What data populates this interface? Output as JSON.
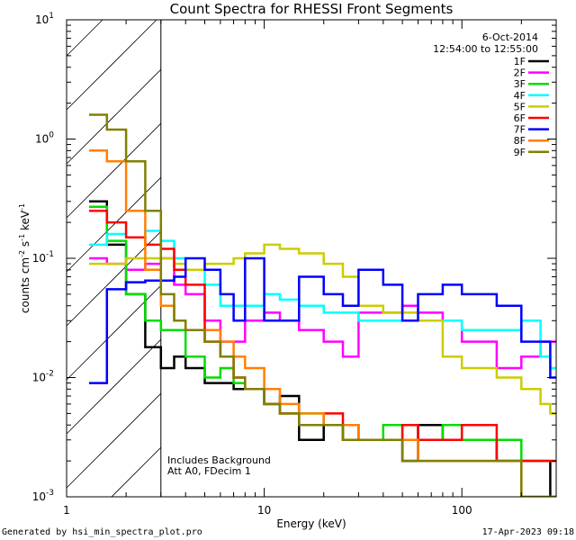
{
  "chart_data": {
    "type": "line",
    "title": "Count Spectra for RHESSI Front Segments",
    "xlabel": "Energy (keV)",
    "ylabel": "counts cm^-2 s^-1 keV^-1",
    "xscale": "log",
    "yscale": "log",
    "xlim": [
      1,
      300
    ],
    "ylim": [
      0.001,
      10
    ],
    "x_ticks": [
      {
        "value": 1,
        "label": "1"
      },
      {
        "value": 10,
        "label": "10"
      },
      {
        "value": 100,
        "label": "100"
      }
    ],
    "y_ticks": [
      {
        "value": 10,
        "base": "10",
        "exp": "1"
      },
      {
        "value": 1,
        "base": "10",
        "exp": "0"
      },
      {
        "value": 0.1,
        "base": "10",
        "exp": "-1"
      },
      {
        "value": 0.01,
        "base": "10",
        "exp": "-2"
      },
      {
        "value": 0.001,
        "base": "10",
        "exp": "-3"
      }
    ],
    "shaded_region": {
      "x": [
        1,
        3
      ],
      "pattern": "hatched"
    },
    "date": "6-Oct-2014",
    "time_range": "12:54:00 to 12:55:00",
    "legend_position": "top-right",
    "annotations": [
      "Includes Background",
      "Att A0, FDecim 1"
    ],
    "series": [
      {
        "name": "1F",
        "color": "#000000",
        "x": [
          1.3,
          1.6,
          2,
          2.5,
          3,
          3.5,
          4,
          5,
          6,
          7,
          8,
          10,
          12,
          15,
          20,
          25,
          30,
          40,
          50,
          60,
          80,
          100,
          150,
          200,
          250,
          280
        ],
        "y": [
          0.3,
          0.13,
          0.05,
          0.018,
          0.012,
          0.015,
          0.012,
          0.009,
          0.009,
          0.008,
          0.008,
          0.006,
          0.007,
          0.003,
          0.004,
          0.003,
          0.003,
          0.003,
          0.002,
          0.004,
          0.003,
          0.003,
          0.002,
          0.002,
          0.002,
          0.001
        ]
      },
      {
        "name": "2F",
        "color": "#ff00ff",
        "x": [
          1.3,
          1.6,
          2,
          2.5,
          3,
          3.5,
          4,
          5,
          6,
          7,
          8,
          10,
          12,
          15,
          20,
          25,
          30,
          40,
          50,
          60,
          80,
          100,
          150,
          200,
          250,
          280
        ],
        "y": [
          0.1,
          0.09,
          0.08,
          0.09,
          0.1,
          0.06,
          0.05,
          0.03,
          0.02,
          0.02,
          0.03,
          0.035,
          0.03,
          0.025,
          0.02,
          0.015,
          0.035,
          0.035,
          0.04,
          0.035,
          0.03,
          0.02,
          0.012,
          0.015,
          0.02,
          0.02
        ]
      },
      {
        "name": "3F",
        "color": "#00dd00",
        "x": [
          1.3,
          1.6,
          2,
          2.5,
          3,
          3.5,
          4,
          5,
          6,
          7,
          8,
          10,
          12,
          15,
          20,
          25,
          30,
          40,
          50,
          60,
          80,
          100,
          150,
          200,
          250,
          280
        ],
        "y": [
          0.27,
          0.14,
          0.05,
          0.03,
          0.025,
          0.025,
          0.015,
          0.01,
          0.012,
          0.009,
          0.008,
          0.006,
          0.005,
          0.005,
          0.004,
          0.004,
          0.003,
          0.004,
          0.003,
          0.003,
          0.004,
          0.003,
          0.003,
          0.002,
          0.002,
          0.002
        ]
      },
      {
        "name": "4F",
        "color": "#00ffff",
        "x": [
          1.3,
          1.6,
          2,
          2.5,
          3,
          3.5,
          4,
          5,
          6,
          7,
          8,
          10,
          12,
          15,
          20,
          25,
          30,
          40,
          50,
          60,
          80,
          100,
          150,
          200,
          250,
          280
        ],
        "y": [
          0.13,
          0.16,
          0.15,
          0.17,
          0.14,
          0.1,
          0.08,
          0.06,
          0.04,
          0.04,
          0.04,
          0.05,
          0.045,
          0.04,
          0.035,
          0.035,
          0.03,
          0.03,
          0.03,
          0.03,
          0.03,
          0.025,
          0.025,
          0.03,
          0.015,
          0.012
        ]
      },
      {
        "name": "5F",
        "color": "#cccc00",
        "x": [
          1.3,
          1.6,
          2,
          2.5,
          3,
          3.5,
          4,
          5,
          6,
          7,
          8,
          10,
          12,
          15,
          20,
          25,
          30,
          40,
          50,
          60,
          80,
          100,
          150,
          200,
          250,
          280
        ],
        "y": [
          0.09,
          0.09,
          0.1,
          0.1,
          0.1,
          0.09,
          0.08,
          0.09,
          0.09,
          0.1,
          0.11,
          0.13,
          0.12,
          0.11,
          0.09,
          0.07,
          0.04,
          0.035,
          0.035,
          0.03,
          0.015,
          0.012,
          0.01,
          0.008,
          0.006,
          0.005
        ]
      },
      {
        "name": "6F",
        "color": "#ff0000",
        "x": [
          1.3,
          1.6,
          2,
          2.5,
          3,
          3.5,
          4,
          5,
          6,
          7,
          8,
          10,
          12,
          15,
          20,
          25,
          30,
          40,
          50,
          60,
          80,
          100,
          150,
          200,
          250,
          280
        ],
        "y": [
          0.25,
          0.2,
          0.15,
          0.13,
          0.12,
          0.08,
          0.06,
          0.02,
          0.015,
          0.01,
          0.008,
          0.006,
          0.005,
          0.004,
          0.005,
          0.004,
          0.003,
          0.003,
          0.004,
          0.003,
          0.003,
          0.004,
          0.002,
          0.002,
          0.002,
          0.002
        ]
      },
      {
        "name": "7F",
        "color": "#0000ff",
        "x": [
          1.3,
          1.6,
          2,
          2.5,
          3,
          3.5,
          4,
          5,
          6,
          7,
          8,
          10,
          12,
          15,
          20,
          25,
          30,
          40,
          50,
          60,
          80,
          100,
          150,
          200,
          250,
          280
        ],
        "y": [
          0.009,
          0.055,
          0.063,
          0.065,
          0.065,
          0.07,
          0.1,
          0.08,
          0.05,
          0.03,
          0.1,
          0.03,
          0.03,
          0.07,
          0.05,
          0.04,
          0.08,
          0.06,
          0.03,
          0.05,
          0.06,
          0.05,
          0.04,
          0.02,
          0.02,
          0.01
        ]
      },
      {
        "name": "8F",
        "color": "#ff8000",
        "x": [
          1.3,
          1.6,
          2,
          2.5,
          3,
          3.5,
          4,
          5,
          6,
          7,
          8,
          10,
          12,
          15,
          20,
          25,
          30,
          40,
          50,
          60,
          80,
          100,
          150,
          200,
          250,
          280
        ],
        "y": [
          0.8,
          0.65,
          0.25,
          0.08,
          0.04,
          0.03,
          0.025,
          0.025,
          0.02,
          0.015,
          0.012,
          0.008,
          0.006,
          0.005,
          0.004,
          0.004,
          0.003,
          0.003,
          0.003,
          0.002,
          0.002,
          0.002,
          0.002,
          0.001,
          0.001,
          0.001
        ]
      },
      {
        "name": "9F",
        "color": "#808000",
        "x": [
          1.3,
          1.6,
          2,
          2.5,
          3,
          3.5,
          4,
          5,
          6,
          7,
          8,
          10,
          12,
          15,
          20,
          25,
          30,
          40,
          50,
          60,
          80,
          100,
          150,
          200,
          250,
          280
        ],
        "y": [
          1.6,
          1.2,
          0.65,
          0.25,
          0.05,
          0.03,
          0.025,
          0.02,
          0.015,
          0.01,
          0.008,
          0.006,
          0.005,
          0.004,
          0.004,
          0.003,
          0.003,
          0.003,
          0.002,
          0.002,
          0.002,
          0.002,
          0.002,
          0.001,
          0.001,
          0.001
        ]
      }
    ]
  },
  "footer": {
    "generated_by": "Generated by hsi_min_spectra_plot.pro",
    "timestamp": "17-Apr-2023 09:18"
  }
}
